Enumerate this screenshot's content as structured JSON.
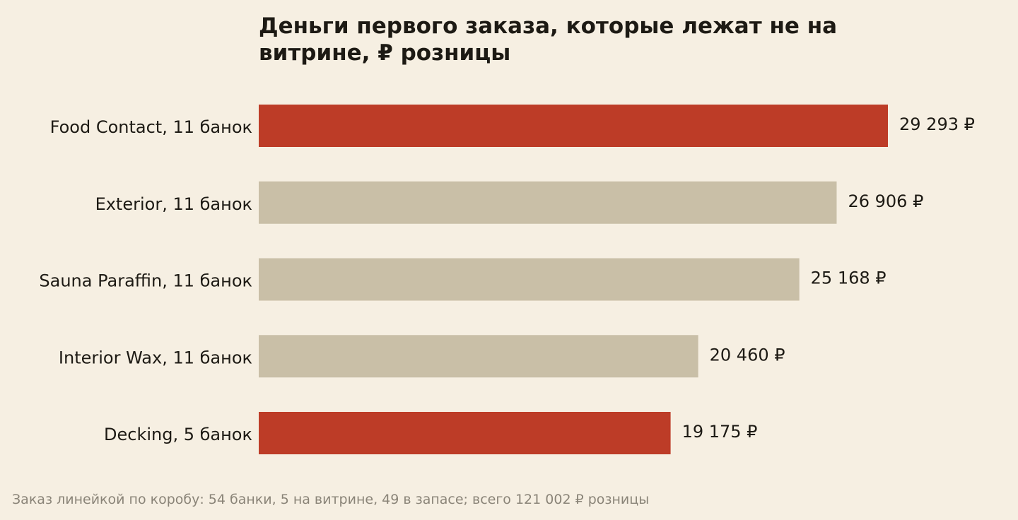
{
  "chart_data": {
    "type": "bar",
    "orientation": "horizontal",
    "title": "Деньги первого заказа, которые лежат не на витрине, ₽ розницы",
    "categories": [
      "Food Contact, 11 банок",
      "Exterior, 11 банок",
      "Sauna Paraffin, 11 банок",
      "Interior Wax, 11 банок",
      "Decking, 5 банок"
    ],
    "values": [
      29293,
      26906,
      25168,
      20460,
      19175
    ],
    "value_labels": [
      "29 293 ₽",
      "26 906 ₽",
      "25 168 ₽",
      "20 460 ₽",
      "19 175 ₽"
    ],
    "highlighted": [
      true,
      false,
      false,
      false,
      true
    ],
    "colors": {
      "highlight": "#bd3c27",
      "default": "#c9bfa7",
      "background": "#f6efe2",
      "text": "#1d1a14",
      "footnote": "#8a8478"
    },
    "xlim": [
      0,
      29293
    ],
    "grid": false,
    "legend": "none"
  },
  "footnote": "Заказ линейкой по коробу: 54 банки, 5 на витрине, 49 в запасе; всего 121 002 ₽ розницы"
}
